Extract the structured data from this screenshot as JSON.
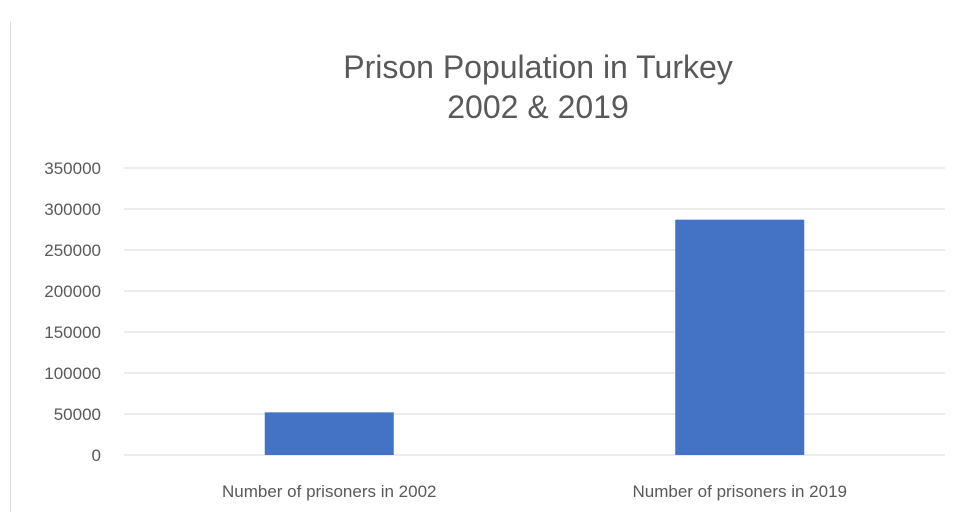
{
  "chart_data": {
    "type": "bar",
    "title_lines": [
      "Prison Population in Turkey",
      "2002 & 2019"
    ],
    "categories": [
      "Number of prisoners in 2002",
      "Number of prisoners in 2019"
    ],
    "values": [
      52000,
      287000
    ],
    "ylim": [
      0,
      350000
    ],
    "yticks": [
      "0",
      "50000",
      "100000",
      "150000",
      "200000",
      "250000",
      "300000",
      "350000"
    ],
    "grid": true,
    "legend": "none",
    "colors": {
      "bar": "#4472c4",
      "grid": "#d9d9d9",
      "text": "#595959"
    }
  }
}
